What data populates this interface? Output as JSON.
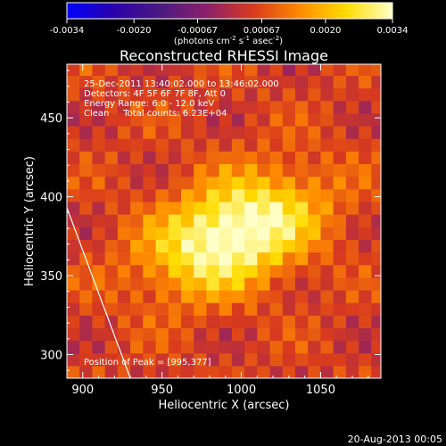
{
  "chart_data": {
    "type": "heatmap",
    "title": "Reconstructed RHESSI Image",
    "xlabel": "Heliocentric X (arcsec)",
    "ylabel": "Heliocentric Y (arcsec)",
    "xlim": [
      890,
      1088
    ],
    "ylim": [
      285,
      484
    ],
    "xticks": [
      900,
      950,
      1000,
      1050
    ],
    "xtick_labels": [
      "900",
      "950",
      "1000",
      "1050"
    ],
    "yticks": [
      300,
      350,
      400,
      450
    ],
    "ytick_labels": [
      "300",
      "350",
      "400",
      "450"
    ],
    "colorbar": {
      "range": [
        -0.0034,
        0.0034
      ],
      "ticks": [
        -0.0034,
        -0.002,
        -0.00067,
        0.00067,
        0.002,
        0.0034
      ],
      "tick_labels": [
        "-0.0034",
        "-0.0020",
        "-0.00067",
        "0.00067",
        "0.0020",
        "0.0034"
      ],
      "unit_label": "(photons cm-2 s-1 asec-2)",
      "colors": [
        "#0000ff",
        "#2a00aa",
        "#4b1a82",
        "#8a1f6a",
        "#d83a1e",
        "#ff8a00",
        "#ffdc00",
        "#ffffc8"
      ]
    },
    "annotations": [
      "25-Dec-2011 13:40:02.000 to 13:46:02.000",
      "Detectors: 4F 5F 6F 7F 8F, Att 0",
      "Energy Range: 6.0 - 12.0 keV",
      "Clean     Total counts: 6.23E+04"
    ],
    "peak_label": "Position of Peak = [995,377]",
    "peak": {
      "x": 995,
      "y": 377
    },
    "peak_value": 0.0034,
    "source_sigma_x": 38,
    "source_sigma_y": 22,
    "background_level": 0.0009,
    "limb_line": [
      [
        890,
        393
      ],
      [
        930,
        285
      ]
    ]
  },
  "footer_date": "20-Aug-2013 00:05"
}
